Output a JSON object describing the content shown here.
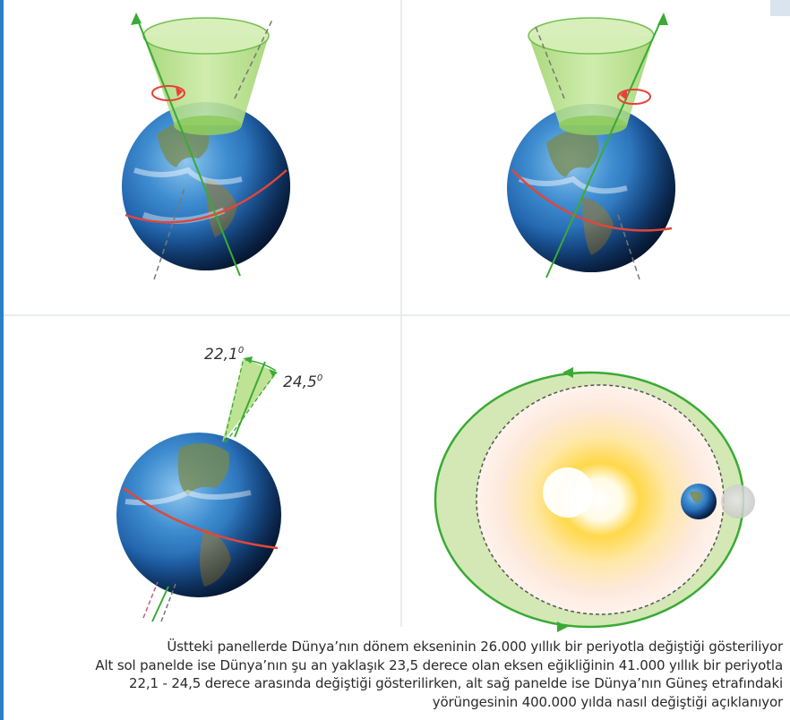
{
  "labels": {
    "tilt_min": "22,1",
    "tilt_max": "24,5",
    "degree_mark": "0"
  },
  "caption": [
    "Üstteki panellerde Dünya’nın dönem ekseninin 26.000 yıllık bir periyotla değiştiği gösteriliyor",
    "Alt sol panelde ise Dünya’nın şu an yaklaşık 23,5 derece olan eksen eğikliğinin 41.000 yıllık bir periyotla",
    "22,1 - 24,5 derece arasında değiştiği gösterilirken, alt sağ panelde ise Dünya’nın Güneş etrafındaki",
    "yörüngesinin 400.000 yılda nasıl değiştiği açıklanıyor"
  ],
  "colors": {
    "axis_green": "#3aaa35",
    "cone_fill": "#b8e08a",
    "orbit_fill": "#d3e8b5",
    "equator": "#e0473a",
    "rotation_arrow": "#e8403a",
    "frame_blue": "#2a7fc6"
  }
}
